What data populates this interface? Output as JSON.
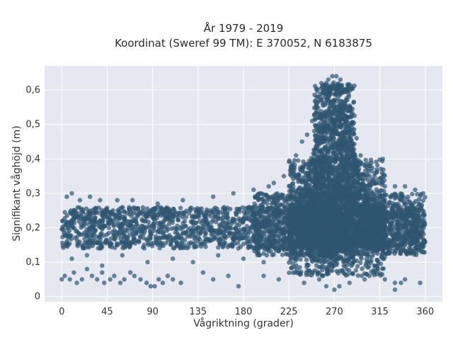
{
  "chart_data": {
    "type": "scatter",
    "title": "År 1979 - 2019",
    "subtitle": "Koordinat (Sweref 99 TM): E 370052, N 6183875",
    "xlabel": "Vågriktning (grader)",
    "ylabel": "Signifikant våghöjd (m)",
    "xlim": [
      -17,
      377
    ],
    "ylim": [
      -0.015,
      0.67
    ],
    "x_ticks": [
      0,
      45,
      90,
      135,
      180,
      225,
      270,
      315,
      360
    ],
    "x_tick_labels": [
      "0",
      "45",
      "90",
      "135",
      "180",
      "225",
      "270",
      "315",
      "360"
    ],
    "y_ticks": [
      0,
      0.1,
      0.2,
      0.3,
      0.4,
      0.5,
      0.6
    ],
    "y_tick_labels": [
      "0",
      "0,1",
      "0,2",
      "0,3",
      "0,4",
      "0,5",
      "0,6"
    ],
    "grid": true,
    "colors": {
      "marker": "#2f5670",
      "plot_bg": "#e5e8f0",
      "grid": "#ffffff"
    },
    "series": [
      {
        "density_bands": [
          {
            "x_range": [
              0,
              360
            ],
            "y_range": [
              0.14,
              0.26
            ],
            "density": 1.0
          },
          {
            "x_range": [
              190,
              360
            ],
            "y_range": [
              0.12,
              0.3
            ],
            "density": 0.9
          },
          {
            "x_range": [
              250,
              290
            ],
            "y_range": [
              0.1,
              0.62
            ],
            "density": 1.0
          },
          {
            "x_range": [
              225,
              320
            ],
            "y_range": [
              0.06,
              0.4
            ],
            "density": 0.7
          }
        ],
        "points": [
          [
            0,
            0.05
          ],
          [
            3,
            0.06
          ],
          [
            8,
            0.05
          ],
          [
            12,
            0.07
          ],
          [
            15,
            0.04
          ],
          [
            20,
            0.05
          ],
          [
            25,
            0.08
          ],
          [
            30,
            0.06
          ],
          [
            35,
            0.05
          ],
          [
            40,
            0.07
          ],
          [
            42,
            0.04
          ],
          [
            48,
            0.05
          ],
          [
            52,
            0.06
          ],
          [
            58,
            0.04
          ],
          [
            62,
            0.05
          ],
          [
            68,
            0.07
          ],
          [
            72,
            0.06
          ],
          [
            78,
            0.05
          ],
          [
            84,
            0.04
          ],
          [
            88,
            0.03
          ],
          [
            92,
            0.03
          ],
          [
            96,
            0.05
          ],
          [
            100,
            0.04
          ],
          [
            105,
            0.06
          ],
          [
            110,
            0.05
          ],
          [
            118,
            0.04
          ],
          [
            140,
            0.07
          ],
          [
            150,
            0.05
          ],
          [
            165,
            0.06
          ],
          [
            175,
            0.03
          ],
          [
            200,
            0.06
          ],
          [
            215,
            0.05
          ],
          [
            240,
            0.04
          ],
          [
            255,
            0.05
          ],
          [
            285,
            0.04
          ],
          [
            300,
            0.05
          ],
          [
            320,
            0.05
          ],
          [
            330,
            0.04
          ],
          [
            340,
            0.05
          ],
          [
            355,
            0.04
          ],
          [
            5,
            0.29
          ],
          [
            10,
            0.3
          ],
          [
            18,
            0.28
          ],
          [
            28,
            0.29
          ],
          [
            38,
            0.28
          ],
          [
            55,
            0.28
          ],
          [
            70,
            0.28
          ],
          [
            95,
            0.27
          ],
          [
            120,
            0.28
          ],
          [
            150,
            0.29
          ],
          [
            170,
            0.3
          ],
          [
            190,
            0.31
          ],
          [
            205,
            0.32
          ],
          [
            210,
            0.33
          ],
          [
            220,
            0.35
          ],
          [
            228,
            0.38
          ],
          [
            232,
            0.41
          ],
          [
            238,
            0.45
          ],
          [
            243,
            0.47
          ],
          [
            248,
            0.51
          ],
          [
            252,
            0.55
          ],
          [
            256,
            0.58
          ],
          [
            260,
            0.61
          ],
          [
            264,
            0.63
          ],
          [
            268,
            0.64
          ],
          [
            272,
            0.64
          ],
          [
            276,
            0.63
          ],
          [
            280,
            0.6
          ],
          [
            284,
            0.55
          ],
          [
            288,
            0.5
          ],
          [
            292,
            0.46
          ],
          [
            296,
            0.41
          ],
          [
            300,
            0.38
          ],
          [
            305,
            0.35
          ],
          [
            312,
            0.33
          ],
          [
            320,
            0.32
          ],
          [
            330,
            0.32
          ],
          [
            340,
            0.32
          ],
          [
            350,
            0.31
          ],
          [
            358,
            0.3
          ],
          [
            270,
            0.02
          ],
          [
            275,
            0.03
          ],
          [
            262,
            0.03
          ],
          [
            330,
            0.02
          ],
          [
            336,
            0.04
          ],
          [
            10,
            0.11
          ],
          [
            25,
            0.12
          ],
          [
            40,
            0.09
          ],
          [
            60,
            0.12
          ],
          [
            85,
            0.1
          ],
          [
            110,
            0.11
          ],
          [
            130,
            0.1
          ],
          [
            155,
            0.12
          ],
          [
            180,
            0.11
          ],
          [
            200,
            0.1
          ]
        ]
      }
    ]
  }
}
